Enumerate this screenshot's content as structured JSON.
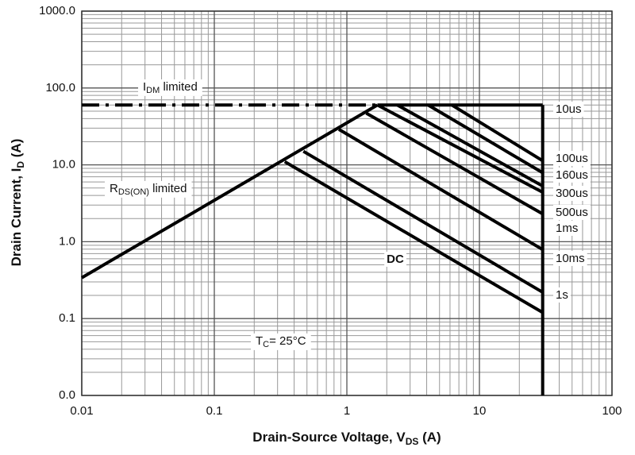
{
  "chart_data": {
    "type": "line",
    "log_x": true,
    "log_y": true,
    "grid": true,
    "xlim": [
      0.01,
      100
    ],
    "xticks": [
      0.01,
      0.1,
      1,
      10,
      100
    ],
    "ylim": [
      0.01,
      1000
    ],
    "yticks": [
      {
        "value": 1000,
        "label": "1000.0"
      },
      {
        "value": 100,
        "label": "100.0"
      },
      {
        "value": 10,
        "label": "10.0"
      },
      {
        "value": 1,
        "label": "1.0"
      },
      {
        "value": 0.1,
        "label": "0.1"
      },
      {
        "value": 0.01,
        "label": "0.0"
      }
    ],
    "x_label": [
      "Drain-Source Voltage, V",
      "DS",
      " (A)"
    ],
    "y_label": [
      "Drain Current, I",
      "D",
      " (A)"
    ],
    "annotations": [
      {
        "parts": [
          "I",
          "DM",
          " limited"
        ]
      },
      {
        "parts": [
          "R",
          "DS(ON)",
          " limited"
        ]
      },
      {
        "parts": [
          "T",
          "C",
          "= 25°C"
        ]
      }
    ],
    "limit_lines": [
      {
        "x": [
          0.01,
          1.7
        ],
        "values": [
          60,
          60
        ],
        "style": "dashdot"
      },
      {
        "x": [
          0.01,
          1.7
        ],
        "values": [
          0.34,
          60
        ],
        "style": "solid"
      },
      {
        "x": [
          30,
          30
        ],
        "values": [
          60,
          0.01
        ],
        "style": "solid"
      }
    ],
    "series": [
      {
        "name": "10us",
        "color": "#000000",
        "x": [
          1.7,
          30
        ],
        "values": [
          60,
          60
        ]
      },
      {
        "name": "100us",
        "color": "#000000",
        "x": [
          6.2,
          30
        ],
        "values": [
          60,
          11.3
        ]
      },
      {
        "name": "160us",
        "color": "#000000",
        "x": [
          4.1,
          30
        ],
        "values": [
          60,
          7.9
        ]
      },
      {
        "name": "300us",
        "color": "#000000",
        "x": [
          2.4,
          30
        ],
        "values": [
          60,
          5.3
        ]
      },
      {
        "name": "500us",
        "color": "#000000",
        "x": [
          1.7,
          30
        ],
        "values": [
          60,
          4.4
        ]
      },
      {
        "name": "1ms",
        "color": "#000000",
        "x": [
          1.4,
          30
        ],
        "values": [
          47,
          2.3
        ]
      },
      {
        "name": "10ms",
        "color": "#000000",
        "x": [
          0.87,
          30
        ],
        "values": [
          29,
          0.79
        ]
      },
      {
        "name": "1s",
        "color": "#000000",
        "x": [
          0.47,
          30
        ],
        "values": [
          15,
          0.22
        ]
      },
      {
        "name": "DC",
        "color": "#000000",
        "x": [
          0.34,
          30
        ],
        "values": [
          11,
          0.12
        ]
      }
    ]
  }
}
